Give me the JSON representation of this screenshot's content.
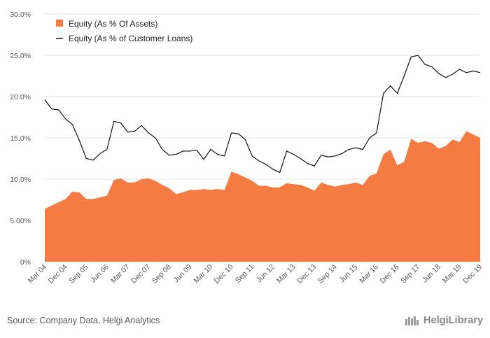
{
  "chart_data": {
    "type": "area",
    "x_labels": [
      "Mar 04",
      "Dec 04",
      "Sep 05",
      "Jun 06",
      "Mar 07",
      "Dec 07",
      "Sep 08",
      "Jun 09",
      "Mar 10",
      "Dec 10",
      "Sep 11",
      "Jun 12",
      "Mar 13",
      "Dec 13",
      "Sep 14",
      "Jun 15",
      "Mar 16",
      "Dec 16",
      "Sep 17",
      "Jun 18",
      "Mar 19",
      "Dec 19"
    ],
    "y_ticks": [
      "0%",
      "5.00%",
      "10.0%",
      "15.0%",
      "20.0%",
      "25.0%",
      "30.0%"
    ],
    "ylim": [
      0,
      30
    ],
    "grid": true,
    "legend_position": "top-left",
    "series": [
      {
        "name": "Equity (As % Of Assets)",
        "type": "area",
        "color": "#f47b42",
        "values": [
          6.4,
          6.8,
          7.2,
          7.6,
          8.5,
          8.4,
          7.6,
          7.6,
          7.8,
          8.0,
          9.9,
          10.1,
          9.6,
          9.6,
          10.0,
          10.1,
          9.8,
          9.3,
          8.9,
          8.2,
          8.4,
          8.7,
          8.7,
          8.8,
          8.7,
          8.8,
          8.7,
          10.9,
          10.6,
          10.2,
          9.8,
          9.2,
          9.2,
          9.0,
          9.0,
          9.5,
          9.4,
          9.3,
          9.0,
          8.6,
          9.6,
          9.3,
          9.1,
          9.3,
          9.4,
          9.6,
          9.3,
          10.4,
          10.7,
          13.0,
          13.6,
          11.7,
          12.1,
          14.9,
          14.4,
          14.6,
          14.4,
          13.7,
          14.0,
          14.8,
          14.5,
          15.8,
          15.4,
          15.0
        ]
      },
      {
        "name": "Equity (As % of Customer Loans)",
        "type": "line",
        "color": "#111111",
        "values": [
          19.6,
          18.5,
          18.4,
          17.3,
          16.6,
          14.7,
          12.5,
          12.3,
          13.1,
          13.6,
          17.0,
          16.8,
          15.7,
          15.8,
          16.5,
          15.6,
          15.0,
          13.6,
          12.9,
          13.0,
          13.4,
          13.4,
          13.5,
          12.4,
          13.6,
          13.0,
          12.8,
          15.6,
          15.5,
          14.8,
          12.8,
          12.2,
          11.8,
          11.2,
          10.8,
          13.4,
          13.0,
          12.5,
          11.9,
          11.6,
          12.9,
          12.7,
          12.8,
          13.1,
          13.6,
          13.8,
          13.6,
          15.0,
          15.6,
          20.4,
          21.3,
          20.4,
          22.5,
          24.8,
          25.0,
          23.9,
          23.6,
          22.8,
          22.3,
          22.7,
          23.3,
          22.9,
          23.1,
          22.9
        ]
      }
    ]
  },
  "footer": {
    "source": "Source: Company Data, Helgi Analytics",
    "brand": "HelgiLibrary"
  }
}
